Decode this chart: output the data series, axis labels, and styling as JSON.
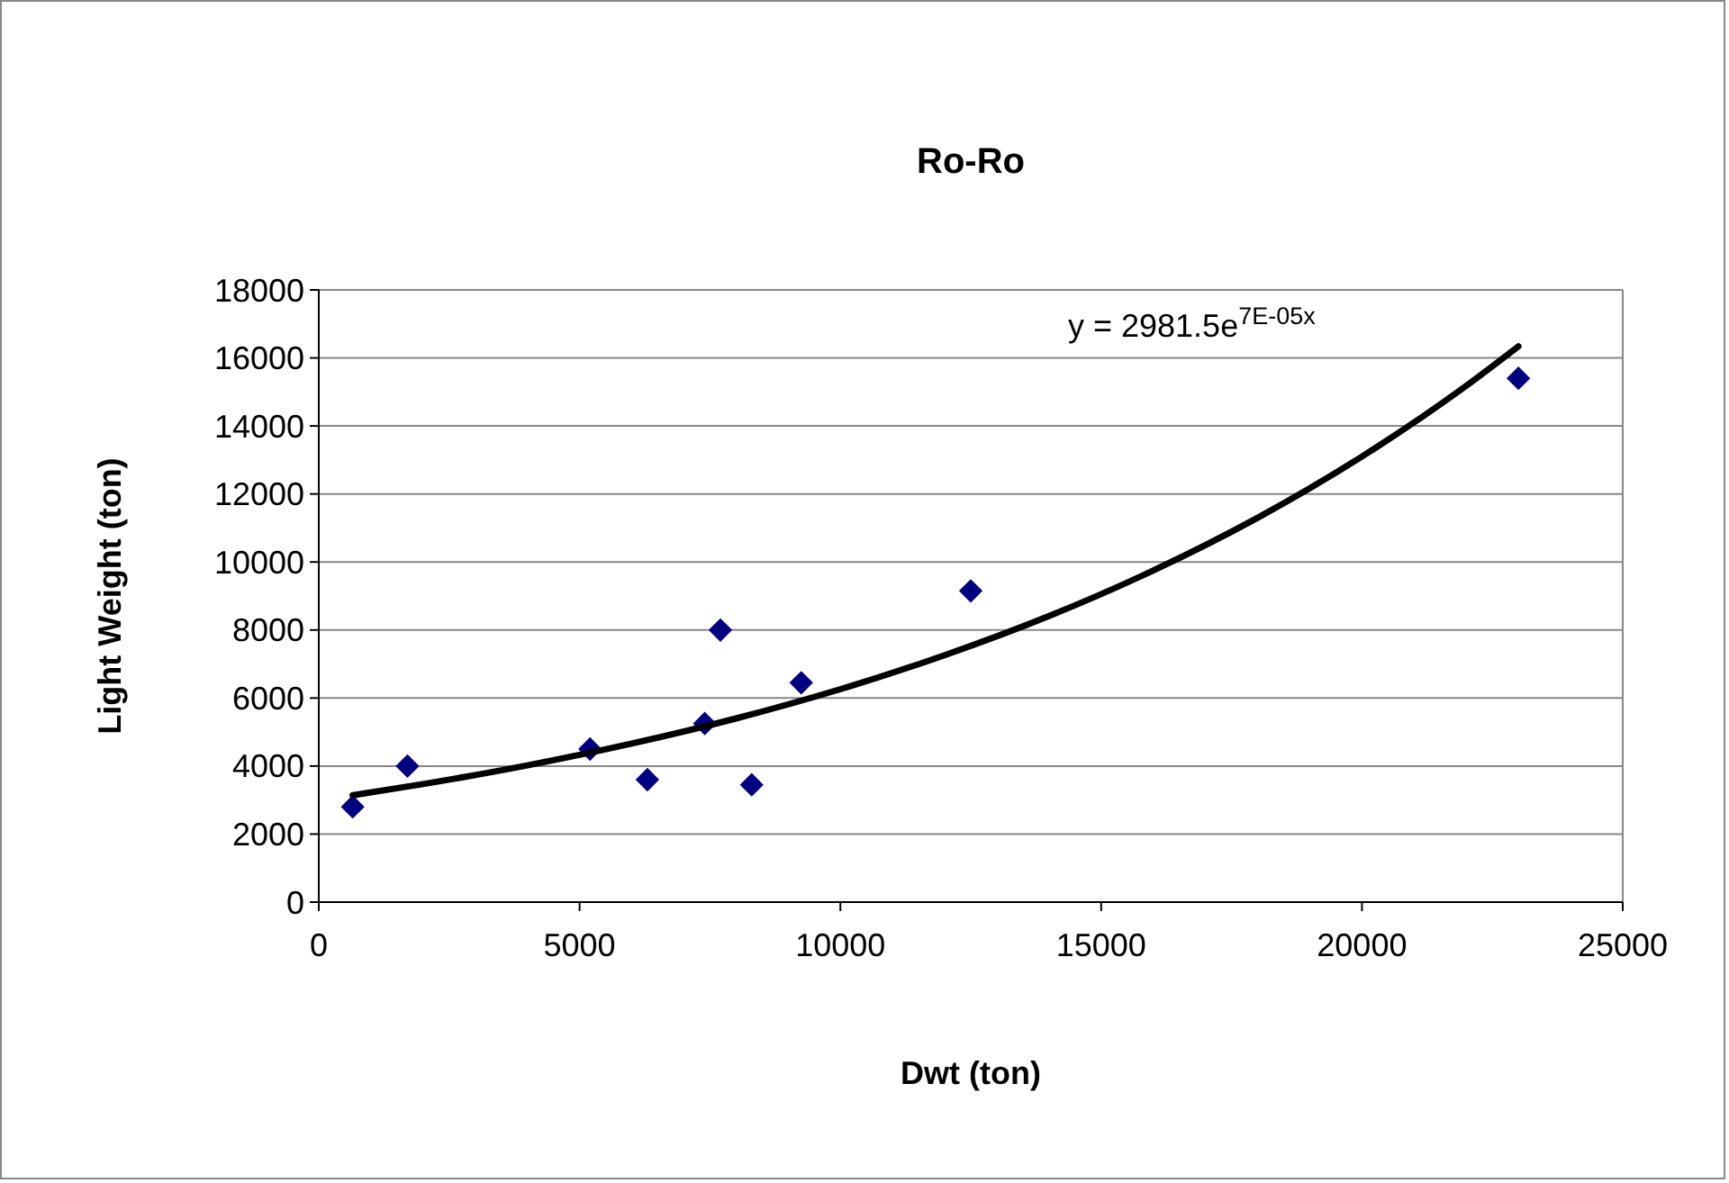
{
  "chart_data": {
    "type": "scatter",
    "title": "Ro-Ro",
    "xlabel": "Dwt (ton)",
    "ylabel": "Light Weight (ton)",
    "xlim": [
      0,
      25000
    ],
    "xticks": [
      0,
      5000,
      10000,
      15000,
      20000,
      25000
    ],
    "ylim": [
      0,
      18000
    ],
    "yticks": [
      0,
      2000,
      4000,
      6000,
      8000,
      10000,
      12000,
      14000,
      16000,
      18000
    ],
    "grid": "y",
    "marker": "diamond",
    "annotations": [
      "y = 2981.5e$^{7E-05x}$"
    ],
    "series": [
      {
        "color": "#000080",
        "x": [
          650,
          1700,
          5200,
          6300,
          7400,
          7700,
          8300,
          9250,
          12500,
          23000
        ],
        "values": [
          2800,
          4000,
          4500,
          3600,
          5250,
          8000,
          3450,
          6450,
          9150,
          15400
        ]
      },
      {
        "type": "line",
        "color": "#000000",
        "line_style": "solid",
        "marker": "none",
        "x": [
          650,
          2000,
          4000,
          6000,
          8000,
          10000,
          12000,
          14000,
          16000,
          18000,
          20000,
          22000,
          23000
        ],
        "values": [
          3140,
          3470,
          4020,
          4660,
          5400,
          6260,
          7260,
          8410,
          9750,
          11300,
          13100,
          15180,
          16340
        ]
      }
    ]
  }
}
